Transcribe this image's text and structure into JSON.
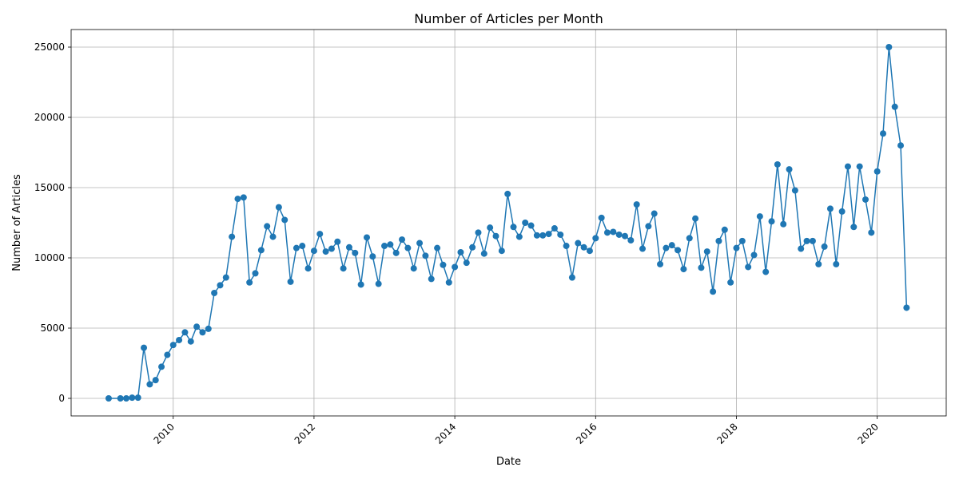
{
  "chart_data": {
    "type": "line",
    "title": "Number of Articles per Month",
    "xlabel": "Date",
    "ylabel": "Number of Articles",
    "xlim": [
      2008.55,
      2020.98
    ],
    "ylim": [
      -1250,
      26250
    ],
    "x_ticks": [
      2010,
      2012,
      2014,
      2016,
      2018,
      2020
    ],
    "x_tick_labels": [
      "2010",
      "2012",
      "2014",
      "2016",
      "2018",
      "2020"
    ],
    "y_ticks": [
      0,
      5000,
      10000,
      15000,
      20000,
      25000
    ],
    "y_tick_labels": [
      "0",
      "5000",
      "10000",
      "15000",
      "20000",
      "25000"
    ],
    "grid": true,
    "legend": "none",
    "series_color": "#1f77b4",
    "series": [
      {
        "points": [
          [
            "2009-02",
            0
          ],
          [
            "2009-04",
            0
          ],
          [
            "2009-05",
            0
          ],
          [
            "2009-06",
            50
          ],
          [
            "2009-07",
            50
          ],
          [
            "2009-08",
            3600
          ],
          [
            "2009-09",
            1000
          ],
          [
            "2009-10",
            1300
          ],
          [
            "2009-11",
            2250
          ],
          [
            "2009-12",
            3100
          ],
          [
            "2010-01",
            3800
          ],
          [
            "2010-02",
            4150
          ],
          [
            "2010-03",
            4700
          ],
          [
            "2010-04",
            4050
          ],
          [
            "2010-05",
            5100
          ],
          [
            "2010-06",
            4700
          ],
          [
            "2010-07",
            4950
          ],
          [
            "2010-08",
            7500
          ],
          [
            "2010-09",
            8050
          ],
          [
            "2010-10",
            8600
          ],
          [
            "2010-11",
            11500
          ],
          [
            "2010-12",
            14200
          ],
          [
            "2011-01",
            14300
          ],
          [
            "2011-02",
            8250
          ],
          [
            "2011-03",
            8900
          ],
          [
            "2011-04",
            10550
          ],
          [
            "2011-05",
            12250
          ],
          [
            "2011-06",
            11500
          ],
          [
            "2011-07",
            13600
          ],
          [
            "2011-08",
            12700
          ],
          [
            "2011-09",
            8300
          ],
          [
            "2011-10",
            10700
          ],
          [
            "2011-11",
            10850
          ],
          [
            "2011-12",
            9250
          ],
          [
            "2012-01",
            10500
          ],
          [
            "2012-02",
            11700
          ],
          [
            "2012-03",
            10450
          ],
          [
            "2012-04",
            10650
          ],
          [
            "2012-05",
            11150
          ],
          [
            "2012-06",
            9250
          ],
          [
            "2012-07",
            10750
          ],
          [
            "2012-08",
            10350
          ],
          [
            "2012-09",
            8100
          ],
          [
            "2012-10",
            11450
          ],
          [
            "2012-11",
            10100
          ],
          [
            "2012-12",
            8150
          ],
          [
            "2013-01",
            10850
          ],
          [
            "2013-02",
            10950
          ],
          [
            "2013-03",
            10350
          ],
          [
            "2013-04",
            11300
          ],
          [
            "2013-05",
            10700
          ],
          [
            "2013-06",
            9250
          ],
          [
            "2013-07",
            11050
          ],
          [
            "2013-08",
            10150
          ],
          [
            "2013-09",
            8500
          ],
          [
            "2013-10",
            10700
          ],
          [
            "2013-11",
            9500
          ],
          [
            "2013-12",
            8250
          ],
          [
            "2014-01",
            9350
          ],
          [
            "2014-02",
            10400
          ],
          [
            "2014-03",
            9650
          ],
          [
            "2014-04",
            10750
          ],
          [
            "2014-05",
            11800
          ],
          [
            "2014-06",
            10300
          ],
          [
            "2014-07",
            12150
          ],
          [
            "2014-08",
            11550
          ],
          [
            "2014-09",
            10500
          ],
          [
            "2014-10",
            14550
          ],
          [
            "2014-11",
            12200
          ],
          [
            "2014-12",
            11500
          ],
          [
            "2015-01",
            12500
          ],
          [
            "2015-02",
            12300
          ],
          [
            "2015-03",
            11600
          ],
          [
            "2015-04",
            11600
          ],
          [
            "2015-05",
            11700
          ],
          [
            "2015-06",
            12100
          ],
          [
            "2015-07",
            11650
          ],
          [
            "2015-08",
            10850
          ],
          [
            "2015-09",
            8600
          ],
          [
            "2015-10",
            11050
          ],
          [
            "2015-11",
            10750
          ],
          [
            "2015-12",
            10500
          ],
          [
            "2016-01",
            11400
          ],
          [
            "2016-02",
            12850
          ],
          [
            "2016-03",
            11800
          ],
          [
            "2016-04",
            11850
          ],
          [
            "2016-05",
            11650
          ],
          [
            "2016-06",
            11550
          ],
          [
            "2016-07",
            11250
          ],
          [
            "2016-08",
            13800
          ],
          [
            "2016-09",
            10650
          ],
          [
            "2016-10",
            12250
          ],
          [
            "2016-11",
            13150
          ],
          [
            "2016-12",
            9550
          ],
          [
            "2017-01",
            10700
          ],
          [
            "2017-02",
            10900
          ],
          [
            "2017-03",
            10550
          ],
          [
            "2017-04",
            9200
          ],
          [
            "2017-05",
            11400
          ],
          [
            "2017-06",
            12800
          ],
          [
            "2017-07",
            9300
          ],
          [
            "2017-08",
            10450
          ],
          [
            "2017-09",
            7600
          ],
          [
            "2017-10",
            11200
          ],
          [
            "2017-11",
            12000
          ],
          [
            "2017-12",
            8250
          ],
          [
            "2018-01",
            10700
          ],
          [
            "2018-02",
            11200
          ],
          [
            "2018-03",
            9350
          ],
          [
            "2018-04",
            10200
          ],
          [
            "2018-05",
            12950
          ],
          [
            "2018-06",
            9000
          ],
          [
            "2018-07",
            12600
          ],
          [
            "2018-08",
            16650
          ],
          [
            "2018-09",
            12400
          ],
          [
            "2018-10",
            16300
          ],
          [
            "2018-11",
            14800
          ],
          [
            "2018-12",
            10650
          ],
          [
            "2019-01",
            11200
          ],
          [
            "2019-02",
            11200
          ],
          [
            "2019-03",
            9550
          ],
          [
            "2019-04",
            10800
          ],
          [
            "2019-05",
            13500
          ],
          [
            "2019-06",
            9550
          ],
          [
            "2019-07",
            13300
          ],
          [
            "2019-08",
            16500
          ],
          [
            "2019-09",
            12200
          ],
          [
            "2019-10",
            16500
          ],
          [
            "2019-11",
            14150
          ],
          [
            "2019-12",
            11800
          ],
          [
            "2020-01",
            16150
          ],
          [
            "2020-02",
            18850
          ],
          [
            "2020-03",
            25000
          ],
          [
            "2020-04",
            20750
          ],
          [
            "2020-05",
            18000
          ],
          [
            "2020-06",
            6450
          ]
        ]
      }
    ]
  }
}
